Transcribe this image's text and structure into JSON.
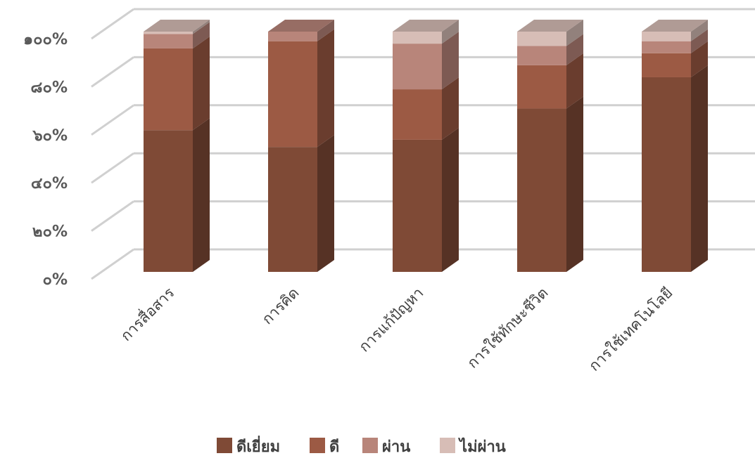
{
  "chart_data": {
    "type": "bar",
    "stacked": true,
    "percent": true,
    "three_d": true,
    "categories": [
      "การสื่อสาร",
      "การคิด",
      "การแก้ปัญหา",
      "การใช้ทักษะชีวิต",
      "การใช้เทคโนโลยี"
    ],
    "series": [
      {
        "name": "ดีเยี่ยม",
        "values": [
          59,
          52,
          55,
          68,
          81
        ],
        "color": "#7f4a36"
      },
      {
        "name": "ดี",
        "values": [
          34,
          44,
          21,
          18,
          10
        ],
        "color": "#9c5a44"
      },
      {
        "name": "ผ่าน",
        "values": [
          6,
          4,
          19,
          8,
          5
        ],
        "color": "#b8857a"
      },
      {
        "name": "ไม่ผ่าน",
        "values": [
          1,
          0,
          5,
          6,
          4
        ],
        "color": "#d7bdb6"
      }
    ],
    "ylim": [
      0,
      100
    ],
    "yticks": [
      "๐%",
      "๒๐%",
      "๔๐%",
      "๖๐%",
      "๘๐%",
      "๑๐๐%"
    ],
    "grid": true,
    "legend_position": "bottom"
  }
}
